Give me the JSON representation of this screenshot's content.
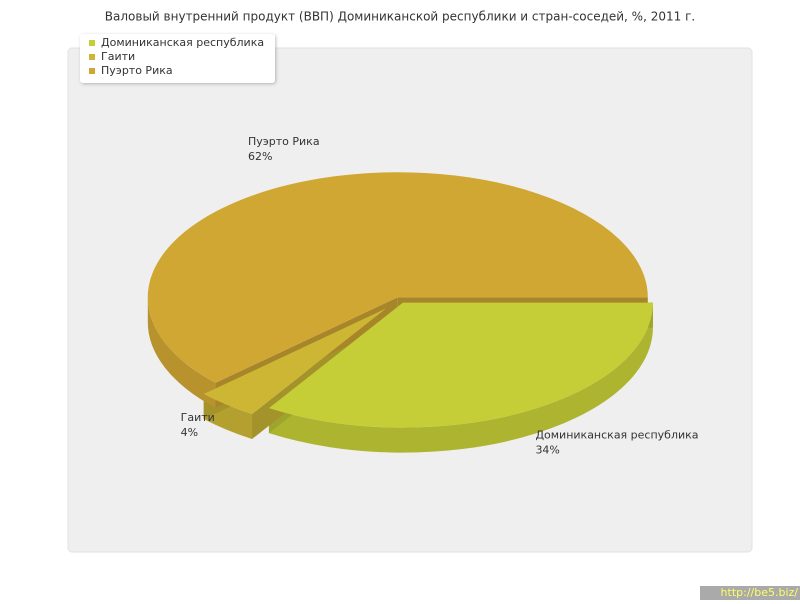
{
  "chart_data": {
    "type": "pie",
    "title": "Валовый внутренний продукт (ВВП) Доминиканской республики и стран-соседей, %, 2011 г.",
    "categories": [
      "Доминиканская республика",
      "Гаити",
      "Пуэрто Рика"
    ],
    "values": [
      34,
      4,
      62
    ],
    "value_labels": [
      "34%",
      "4%",
      "62%"
    ],
    "colors": [
      "#c5cd37",
      "#cdb634",
      "#d1a733"
    ],
    "legend": "top-left"
  },
  "watermark": "http://be5.biz/"
}
